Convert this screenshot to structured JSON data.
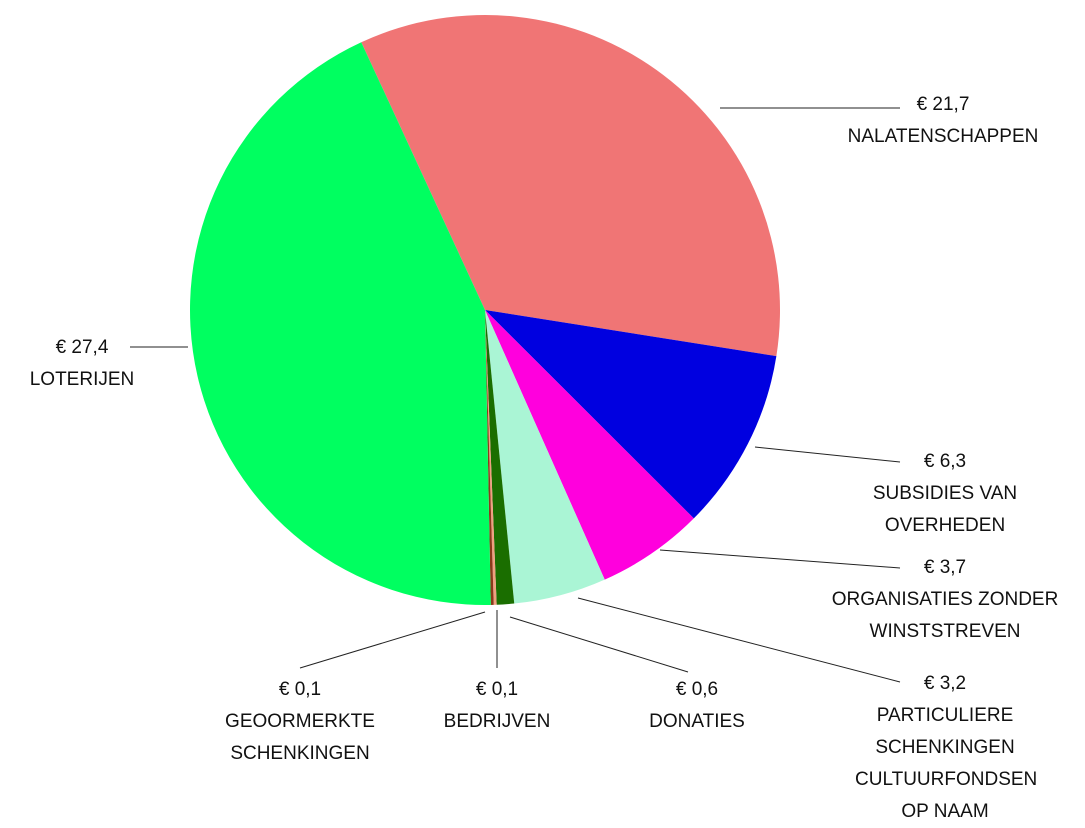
{
  "chart_data": {
    "type": "pie",
    "categories": [
      "NALATENSCHAPPEN",
      "SUBSIDIES VAN OVERHEDEN",
      "ORGANISATIES ZONDER WINSTSTREVEN",
      "PARTICULIERE SCHENKINGEN CULTUURFONDSEN OP NAAM",
      "DONATIES",
      "BEDRIJVEN",
      "GEOORMERKTE SCHENKINGEN",
      "LOTERIJEN"
    ],
    "values": [
      21.7,
      6.3,
      3.7,
      3.2,
      0.6,
      0.1,
      0.1,
      27.4
    ],
    "value_labels": [
      "€ 21,7",
      "€ 6,3",
      "€ 3,7",
      "€ 3,2",
      "€ 0,6",
      "€ 0,1",
      "€ 0,1",
      "€ 27,4"
    ],
    "colors": [
      "#f07575",
      "#0000e0",
      "#ff00dd",
      "#aaf5d5",
      "#1a6e00",
      "#f0a080",
      "#8b3a1a",
      "#00ff60"
    ]
  }
}
